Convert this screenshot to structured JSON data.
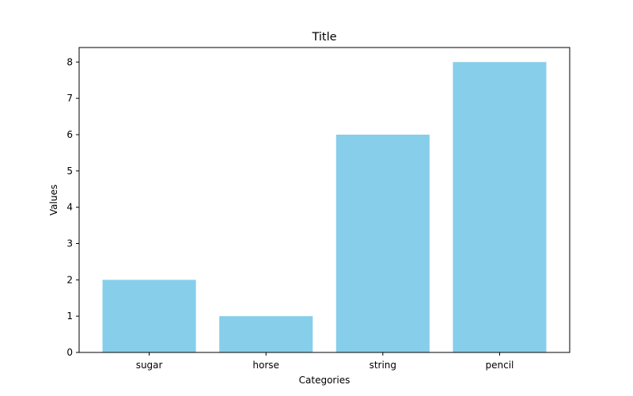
{
  "chart_data": {
    "type": "bar",
    "title": "Title",
    "xlabel": "Categories",
    "ylabel": "Values",
    "categories": [
      "sugar",
      "horse",
      "string",
      "pencil"
    ],
    "values": [
      2,
      1,
      6,
      8
    ],
    "ylim": [
      0,
      8.4
    ],
    "yticks": [
      "0",
      "1",
      "2",
      "3",
      "4",
      "5",
      "6",
      "7",
      "8"
    ],
    "bar_color": "#87CEEB",
    "grid": false,
    "legend": "none"
  }
}
